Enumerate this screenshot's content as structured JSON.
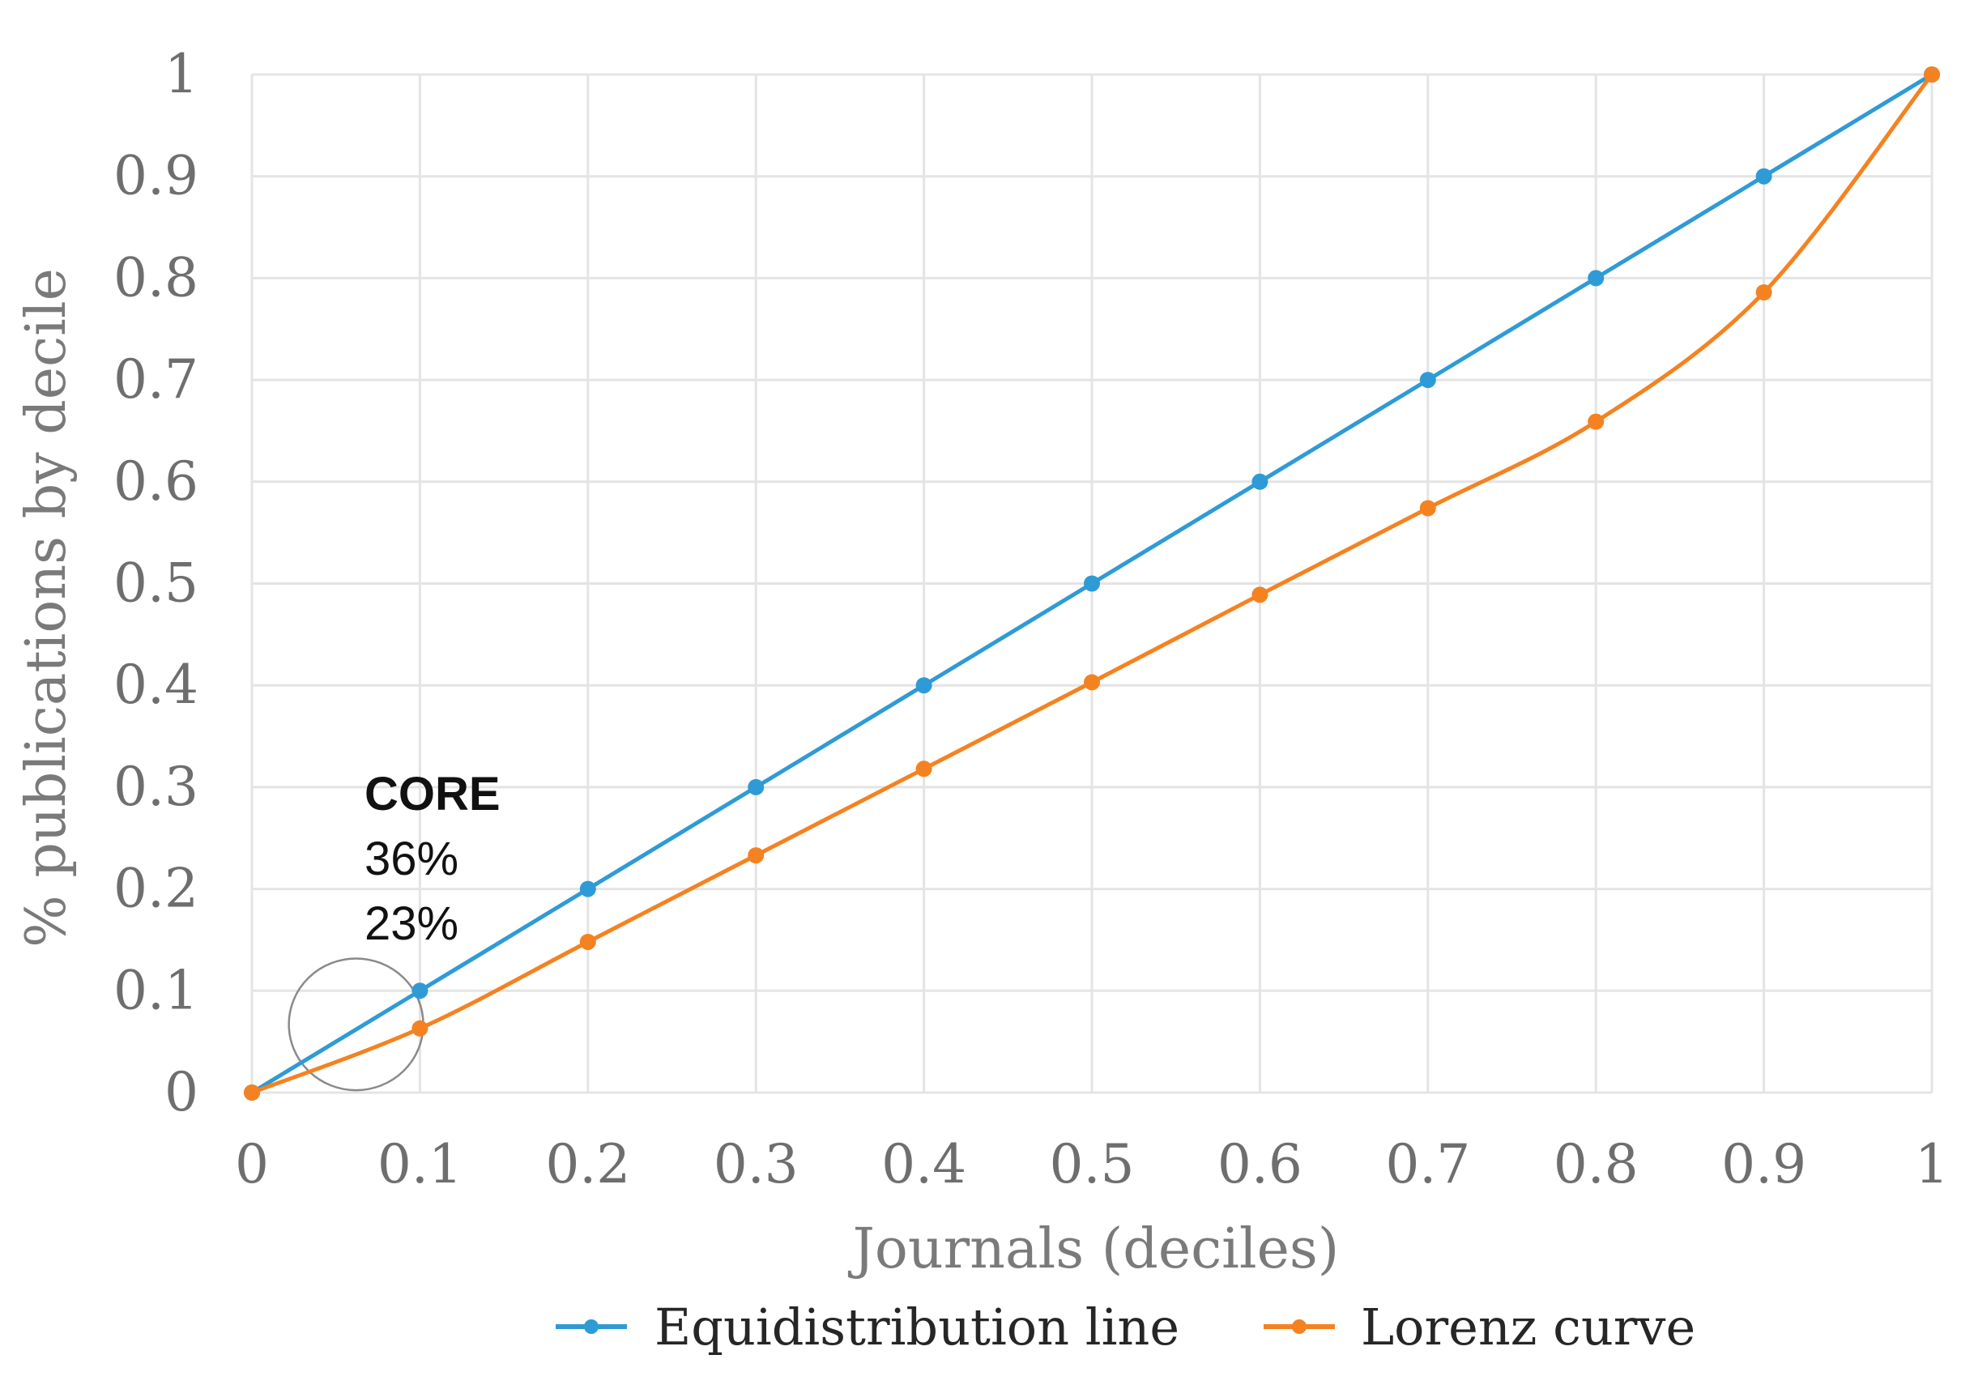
{
  "colors": {
    "equidistribution": "#2e9bd6",
    "lorenz": "#f58220",
    "grid": "#e4e4e4",
    "tick_text": "#6e6e6e"
  },
  "chart_data": {
    "type": "line",
    "title": "",
    "xlabel": "Journals (deciles)",
    "ylabel": "% publications by decile",
    "x": [
      0,
      0.1,
      0.2,
      0.3,
      0.4,
      0.5,
      0.6,
      0.7,
      0.8,
      0.9,
      1
    ],
    "xlim": [
      0,
      1
    ],
    "ylim": [
      0,
      1
    ],
    "x_tick_labels": [
      "0",
      "0.1",
      "0.2",
      "0.3",
      "0.4",
      "0.5",
      "0.6",
      "0.7",
      "0.8",
      "0.9",
      "1"
    ],
    "y_tick_labels": [
      "0",
      "0.1",
      "0.2",
      "0.3",
      "0.4",
      "0.5",
      "0.6",
      "0.7",
      "0.8",
      "0.9",
      "1"
    ],
    "grid": true,
    "legend_position": "bottom",
    "series": [
      {
        "name": "Equidistribution line",
        "color": "#2e9bd6",
        "values": [
          0,
          0.1,
          0.2,
          0.3,
          0.4,
          0.5,
          0.6,
          0.7,
          0.8,
          0.9,
          1
        ]
      },
      {
        "name": "Lorenz curve",
        "color": "#f58220",
        "values": [
          0,
          0.063,
          0.148,
          0.233,
          0.318,
          0.403,
          0.489,
          0.574,
          0.659,
          0.786,
          1
        ]
      }
    ],
    "annotations": {
      "heading": "CORE",
      "lines": [
        "36%",
        "23%"
      ],
      "circle_center": [
        0.062,
        0.067
      ],
      "circle_radius_x": 0.04
    }
  }
}
